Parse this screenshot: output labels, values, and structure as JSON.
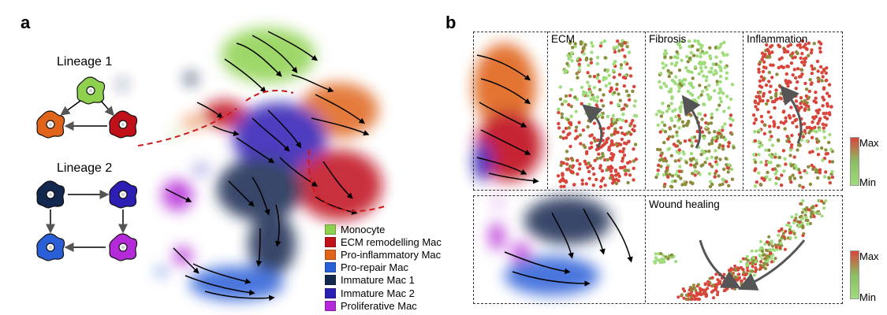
{
  "panels": {
    "a": "a",
    "b": "b"
  },
  "lineages": [
    {
      "title": "Lineage 1"
    },
    {
      "title": "Lineage 2"
    }
  ],
  "legend": [
    {
      "label": "Monocyte",
      "color": "#8ed14f"
    },
    {
      "label": "ECM remodelling Mac",
      "color": "#c0101a"
    },
    {
      "label": "Pro-inflammatory Mac",
      "color": "#e0651a"
    },
    {
      "label": "Pro-repair Mac",
      "color": "#2a5fd8"
    },
    {
      "label": "Immature Mac 1",
      "color": "#13284f"
    },
    {
      "label": "Immature Mac 2",
      "color": "#2d1fb4"
    },
    {
      "label": "Proliferative Mac",
      "color": "#b52ad8"
    }
  ],
  "score_panels": {
    "ecm": "ECM",
    "fibrosis": "Fibrosis",
    "inflammation": "Inflammation",
    "wound": "Wound healing"
  },
  "colorbars": [
    {
      "max": "Max",
      "min": "Min"
    },
    {
      "max": "Max",
      "min": "Min"
    }
  ],
  "colors": {
    "high": "#d8453a",
    "mid": "#8c8c3c",
    "low": "#9fdc7c",
    "dash": "#cc1a1a"
  }
}
